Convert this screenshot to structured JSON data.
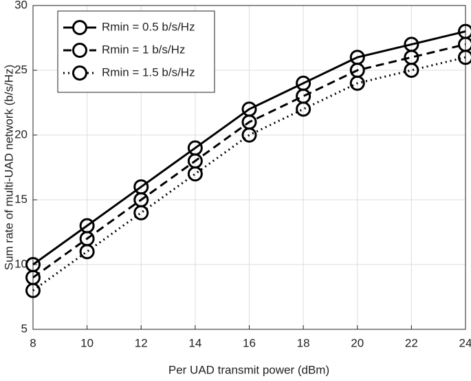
{
  "chart_data": {
    "type": "line",
    "xlabel": "Per UAD transmit power (dBm)",
    "ylabel": "Sum rate of multi-UAD network (b/s/Hz)",
    "x": [
      8,
      10,
      12,
      14,
      16,
      18,
      20,
      22,
      24
    ],
    "series": [
      {
        "name": "Rmin = 0.5 b/s/Hz",
        "color": "#000000",
        "linestyle": "solid",
        "values": [
          10,
          13,
          16,
          19,
          22,
          24,
          26,
          27,
          28
        ]
      },
      {
        "name": "Rmin = 1 b/s/Hz",
        "color": "#000000",
        "linestyle": "dashed",
        "values": [
          9,
          12,
          15,
          18,
          21,
          23,
          25,
          26,
          27
        ]
      },
      {
        "name": "Rmin = 1.5 b/s/Hz",
        "color": "#000000",
        "linestyle": "dotted",
        "values": [
          8,
          11,
          14,
          17,
          20,
          22,
          24,
          25,
          26
        ]
      }
    ],
    "xlim": [
      8,
      24
    ],
    "xticks": [
      8,
      10,
      12,
      14,
      16,
      18,
      20,
      22,
      24
    ],
    "ylim": [
      5,
      30
    ],
    "yticks": [
      5,
      10,
      15,
      20,
      25,
      30
    ],
    "grid": true,
    "legend": "upper left",
    "marker": "circle"
  }
}
